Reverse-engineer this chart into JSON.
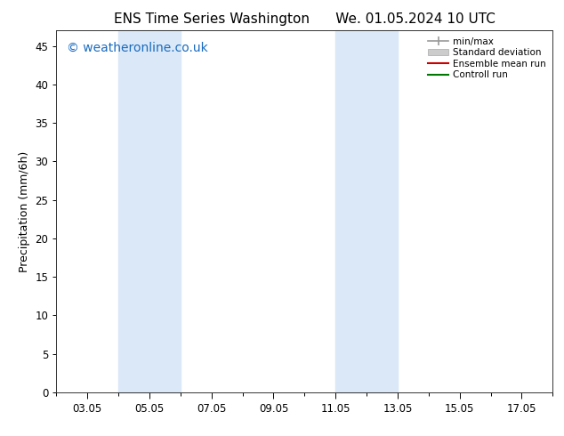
{
  "title": "ENS Time Series Washington      We. 01.05.2024 10 UTC",
  "ylabel": "Precipitation (mm/6h)",
  "ylim": [
    0,
    47
  ],
  "yticks": [
    0,
    5,
    10,
    15,
    20,
    25,
    30,
    35,
    40,
    45
  ],
  "xtick_labels": [
    "03.05",
    "05.05",
    "07.05",
    "09.05",
    "11.05",
    "13.05",
    "15.05",
    "17.05"
  ],
  "xtick_positions": [
    3,
    5,
    7,
    9,
    11,
    13,
    15,
    17
  ],
  "xlim": [
    2,
    18
  ],
  "shaded_regions": [
    {
      "x_start": 4.0,
      "x_end": 6.0,
      "color": "#dae8f7"
    },
    {
      "x_start": 11.0,
      "x_end": 13.0,
      "color": "#dae8f7"
    }
  ],
  "watermark_text": "© weatheronline.co.uk",
  "watermark_color": "#1a6bbf",
  "watermark_fontsize": 10,
  "legend_entries": [
    {
      "label": "min/max",
      "color": "#999999"
    },
    {
      "label": "Standard deviation",
      "color": "#cccccc"
    },
    {
      "label": "Ensemble mean run",
      "color": "#cc0000"
    },
    {
      "label": "Controll run",
      "color": "#007700"
    }
  ],
  "bg_color": "#ffffff",
  "plot_bg_color": "#ffffff",
  "title_fontsize": 11,
  "axis_label_fontsize": 9,
  "tick_fontsize": 8.5
}
